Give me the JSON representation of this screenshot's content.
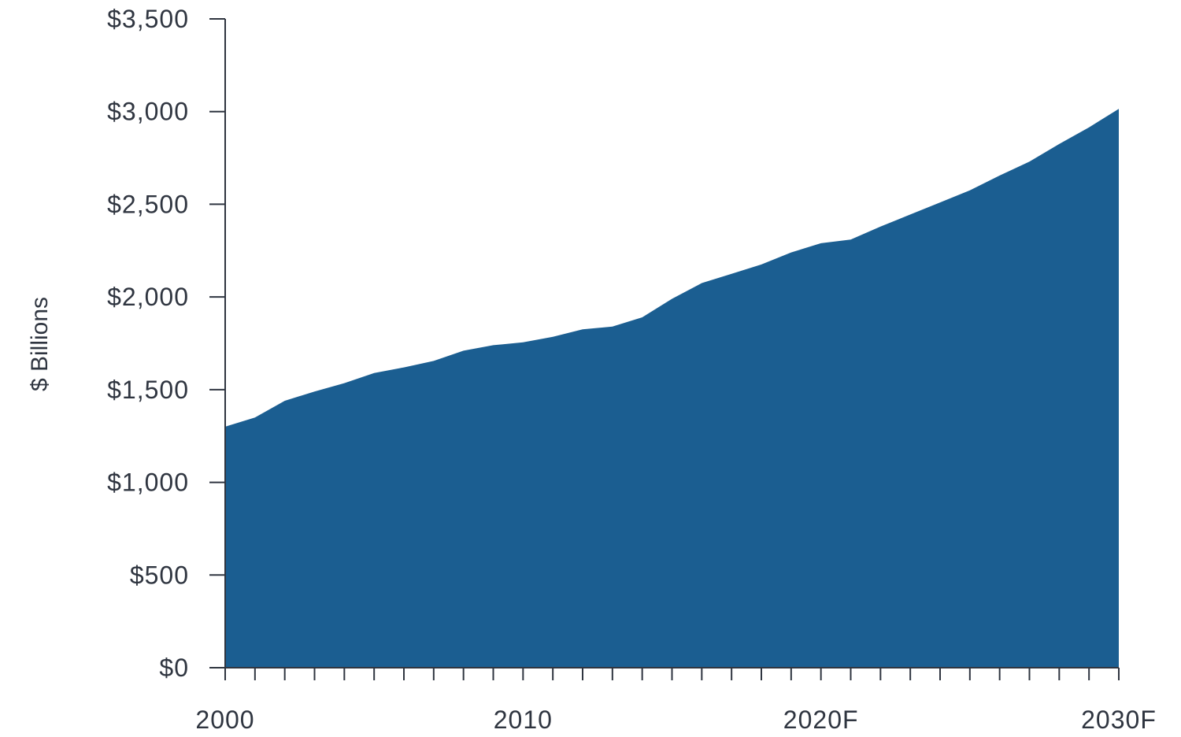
{
  "chart_data": {
    "type": "area",
    "title": "",
    "xlabel": "",
    "ylabel": "$ Billions",
    "ylim": [
      0,
      3500
    ],
    "grid": false,
    "legend": "none",
    "y_tick_values": [
      0,
      500,
      1000,
      1500,
      2000,
      2500,
      3000,
      3500
    ],
    "y_tick_labels": [
      "$0",
      "$500",
      "$1,000",
      "$1,500",
      "$2,000",
      "$2,500",
      "$3,000",
      "$3,500"
    ],
    "x_tick_labels": [
      "2000",
      "2010",
      "2020F",
      "2030F"
    ],
    "x_labeled_positions": [
      2000,
      2010,
      2020,
      2030
    ],
    "x": [
      2000,
      2001,
      2002,
      2003,
      2004,
      2005,
      2006,
      2007,
      2008,
      2009,
      2010,
      2011,
      2012,
      2013,
      2014,
      2015,
      2016,
      2017,
      2018,
      2019,
      2020,
      2021,
      2022,
      2023,
      2024,
      2025,
      2026,
      2027,
      2028,
      2029,
      2030
    ],
    "series": [
      {
        "color": "#1b5e91",
        "values": [
          1300,
          1350,
          1440,
          1490,
          1535,
          1590,
          1620,
          1655,
          1710,
          1740,
          1755,
          1785,
          1825,
          1840,
          1890,
          1990,
          2075,
          2125,
          2175,
          2240,
          2290,
          2310,
          2380,
          2445,
          2510,
          2575,
          2655,
          2730,
          2825,
          2915,
          3015
        ]
      }
    ]
  }
}
